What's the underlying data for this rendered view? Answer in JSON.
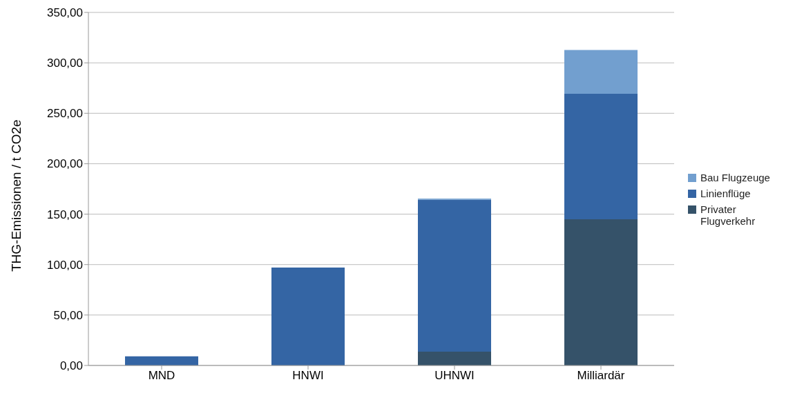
{
  "chart_data": {
    "type": "bar",
    "ylabel": "THG-Emissionen / t CO2e",
    "categories": [
      "MND",
      "HNWI",
      "UHNWI",
      "Milliardär"
    ],
    "stacked": true,
    "series": [
      {
        "name": "Privater Flugverkehr",
        "color": "#355269",
        "values": [
          0,
          0,
          13.7,
          145
        ]
      },
      {
        "name": "Linienflüge",
        "color": "#3465a4",
        "values": [
          9,
          97.1,
          150.6,
          124.4
        ]
      },
      {
        "name": "Bau Flugzeuge",
        "color": "#729fcf",
        "values": [
          0,
          0,
          1.1,
          43.4
        ]
      }
    ],
    "ylim": [
      0,
      350
    ],
    "yticks": [
      {
        "value": 0,
        "label": "0,00"
      },
      {
        "value": 50,
        "label": "50,00"
      },
      {
        "value": 100,
        "label": "100,00"
      },
      {
        "value": 150,
        "label": "150,00"
      },
      {
        "value": 200,
        "label": "200,00"
      },
      {
        "value": 250,
        "label": "250,00"
      },
      {
        "value": 300,
        "label": "300,00"
      },
      {
        "value": 350,
        "label": "350,00"
      }
    ],
    "grid": "y",
    "legend": "right"
  }
}
